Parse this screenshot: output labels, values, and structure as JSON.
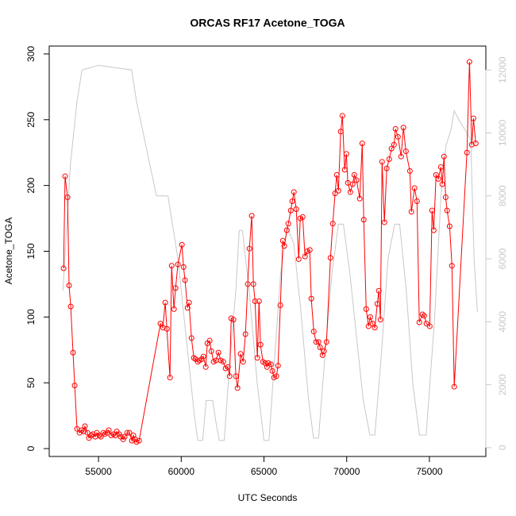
{
  "chart_data": {
    "type": "line",
    "title": "ORCAS RF17 Acetone_TOGA",
    "x_label": "UTC Seconds",
    "y_label": "Acetone_TOGA",
    "xlim": [
      52020,
      78410
    ],
    "ylim": [
      -6,
      306
    ],
    "y2lim": [
      -280,
      12760
    ],
    "xticks": [
      55000,
      60000,
      65000,
      70000,
      75000
    ],
    "yticks": [
      0,
      50,
      100,
      150,
      200,
      250,
      300
    ],
    "y2ticks": [
      0,
      2000,
      4000,
      6000,
      8000,
      10000,
      12000
    ],
    "series": [
      {
        "color": "#ff0000",
        "markers": true,
        "x": [
          52890,
          52980,
          53130,
          53220,
          53320,
          53460,
          53560,
          53700,
          53850,
          53990,
          54090,
          54180,
          54330,
          54420,
          54570,
          54660,
          54810,
          54900,
          55050,
          55140,
          55290,
          55380,
          55530,
          55620,
          55770,
          55910,
          56010,
          56100,
          56250,
          56340,
          56490,
          56580,
          56730,
          56870,
          57020,
          57110,
          57210,
          57300,
          57450,
          58740,
          58890,
          59030,
          59130,
          59320,
          59420,
          59560,
          59660,
          59800,
          60040,
          60140,
          60230,
          60380,
          60470,
          60620,
          60760,
          60860,
          61000,
          61100,
          61240,
          61340,
          61480,
          61580,
          61720,
          61820,
          61960,
          62100,
          62250,
          62390,
          62540,
          62680,
          62820,
          62920,
          63020,
          63160,
          63300,
          63400,
          63590,
          63740,
          63880,
          64020,
          64120,
          64260,
          64360,
          64460,
          64600,
          64700,
          64790,
          64940,
          65080,
          65180,
          65270,
          65420,
          65510,
          65610,
          65750,
          65850,
          65990,
          66140,
          66230,
          66380,
          66470,
          66620,
          66710,
          66810,
          66950,
          67100,
          67190,
          67340,
          67480,
          67620,
          67770,
          67860,
          68010,
          68150,
          68300,
          68390,
          68540,
          68630,
          68780,
          69020,
          69160,
          69300,
          69400,
          69500,
          69640,
          69740,
          69880,
          69980,
          70070,
          70220,
          70360,
          70460,
          70600,
          70790,
          70940,
          71030,
          71180,
          71320,
          71420,
          71560,
          71700,
          71850,
          71940,
          72040,
          72140,
          72280,
          72420,
          72570,
          72710,
          72860,
          72950,
          73100,
          73290,
          73430,
          73580,
          73820,
          73910,
          74100,
          74250,
          74390,
          74580,
          74680,
          74820,
          75020,
          75160,
          75260,
          75400,
          75540,
          75690,
          75780,
          75880,
          75980,
          76070,
          76220,
          76360,
          76500,
          77270,
          77420,
          77560,
          77660,
          77800
        ],
        "values": [
          137,
          207,
          191,
          124,
          108,
          73,
          48,
          15,
          12,
          14,
          13,
          17,
          12,
          8,
          10,
          11,
          9,
          12,
          10,
          9,
          12,
          11,
          12,
          14,
          10,
          11,
          10,
          13,
          11,
          9,
          7,
          9,
          12,
          12,
          6,
          10,
          7,
          5,
          6,
          95,
          92,
          111,
          91,
          54,
          139,
          106,
          122,
          140,
          155,
          138,
          128,
          107,
          111,
          84,
          69,
          68,
          66,
          67,
          68,
          70,
          62,
          80,
          82,
          74,
          66,
          67,
          73,
          67,
          66,
          61,
          62,
          55,
          99,
          98,
          55,
          46,
          72,
          66,
          87,
          125,
          152,
          177,
          125,
          112,
          69,
          112,
          79,
          66,
          65,
          62,
          65,
          64,
          59,
          54,
          55,
          63,
          109,
          158,
          154,
          166,
          171,
          181,
          188,
          195,
          182,
          144,
          175,
          176,
          146,
          150,
          151,
          114,
          89,
          81,
          81,
          77,
          71,
          74,
          81,
          145,
          171,
          194,
          208,
          196,
          241,
          253,
          212,
          224,
          202,
          195,
          201,
          208,
          204,
          190,
          232,
          174,
          106,
          93,
          100,
          95,
          92,
          110,
          120,
          98,
          218,
          172,
          213,
          220,
          228,
          231,
          243,
          237,
          222,
          244,
          226,
          211,
          180,
          198,
          188,
          96,
          102,
          101,
          95,
          93,
          181,
          166,
          208,
          205,
          214,
          201,
          222,
          191,
          181,
          169,
          139,
          47,
          225,
          294,
          231,
          251,
          232
        ]
      },
      {
        "color": "#c8c8c8",
        "axis": "y2",
        "markers": false,
        "x": [
          52850,
          53300,
          53700,
          54000,
          55000,
          57000,
          57300,
          58500,
          59200,
          59800,
          60400,
          60800,
          61000,
          61300,
          61500,
          61900,
          62100,
          62300,
          62600,
          62900,
          63300,
          63500,
          63700,
          64100,
          64600,
          65000,
          65300,
          65600,
          66000,
          66400,
          66800,
          67200,
          67700,
          68000,
          68300,
          68700,
          69100,
          69500,
          69800,
          70200,
          70600,
          71000,
          71400,
          71700,
          72100,
          72500,
          72900,
          73200,
          73600,
          74000,
          74400,
          74800,
          75300,
          75700,
          76000,
          76300,
          76500,
          76800,
          77500,
          77700,
          77900
        ],
        "values": [
          5000,
          9000,
          11000,
          12000,
          12150,
          12000,
          11000,
          8000,
          8000,
          6000,
          3000,
          1000,
          230,
          230,
          1500,
          1500,
          800,
          230,
          230,
          2500,
          5000,
          6900,
          6900,
          5000,
          2000,
          230,
          230,
          2500,
          5500,
          7000,
          6500,
          4500,
          1500,
          300,
          300,
          3000,
          5500,
          7100,
          7100,
          5500,
          3500,
          1500,
          400,
          400,
          3000,
          6000,
          7100,
          7100,
          5000,
          2000,
          400,
          400,
          4000,
          8000,
          9600,
          10100,
          10700,
          10400,
          9800,
          6000,
          4300
        ]
      }
    ]
  }
}
